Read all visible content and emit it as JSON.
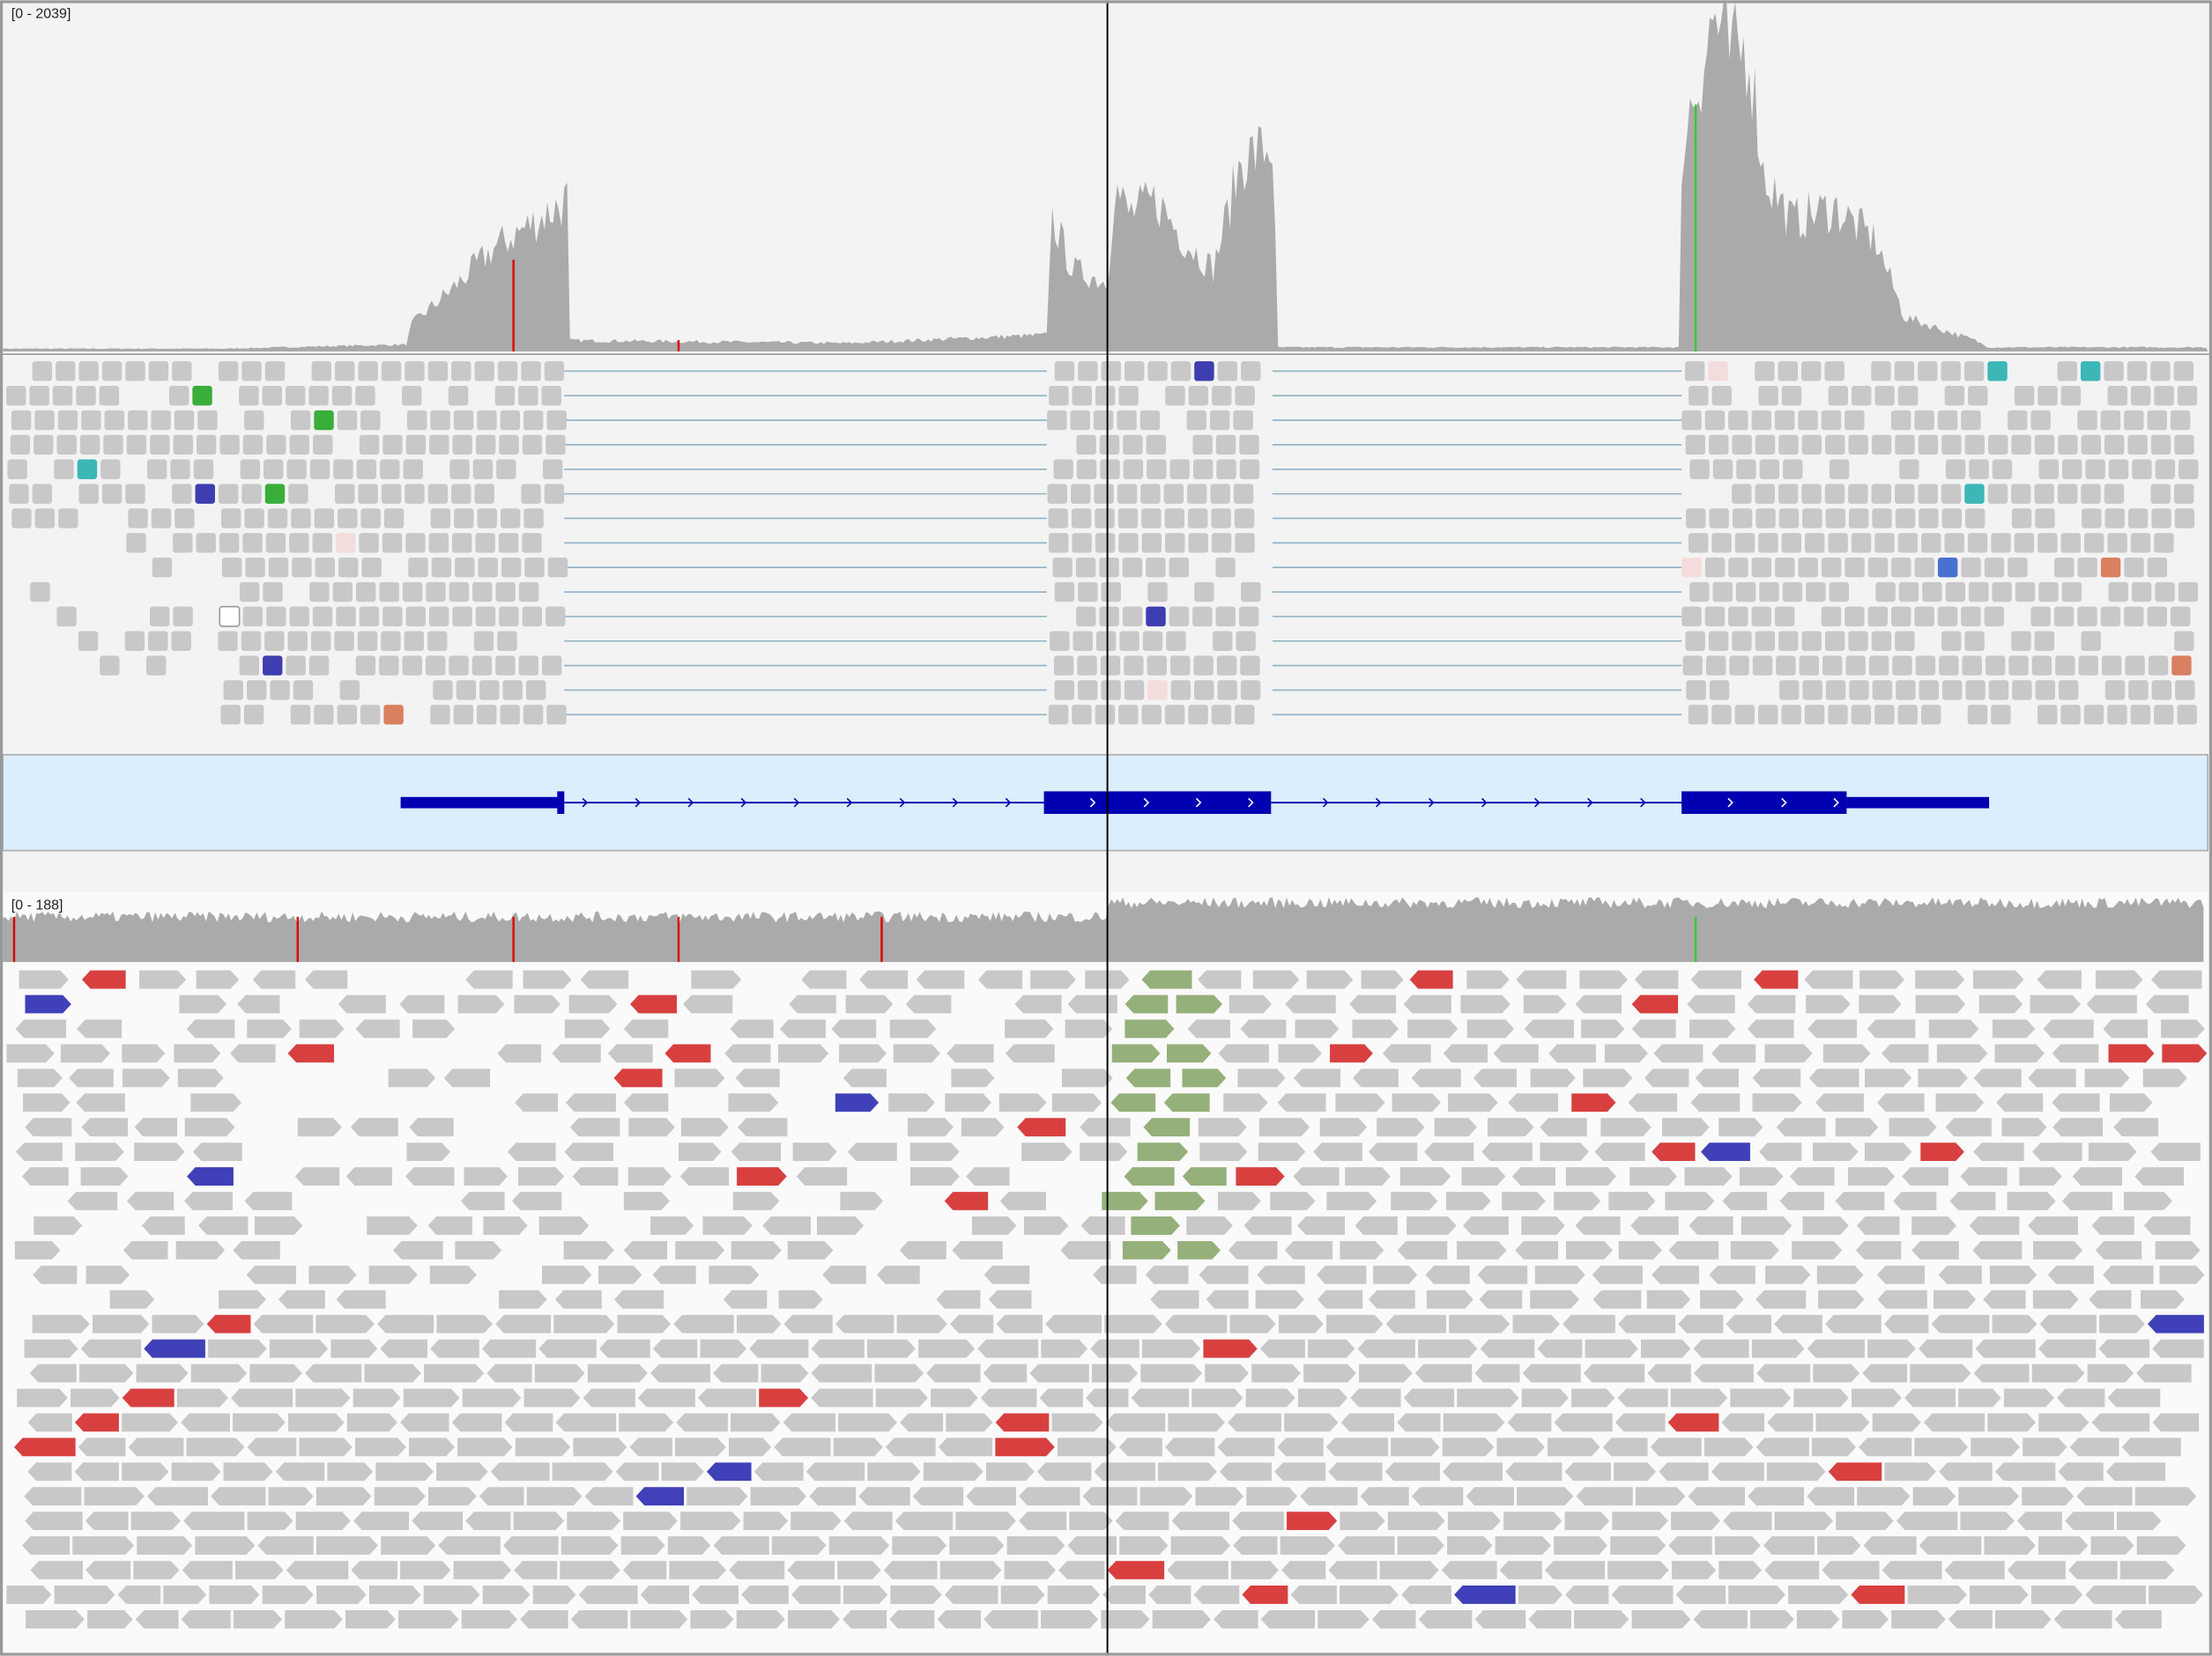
{
  "top_track": {
    "range_label": "[0 - 2039]"
  },
  "bottom_track": {
    "range_label": "[0 - 188]"
  }
}
